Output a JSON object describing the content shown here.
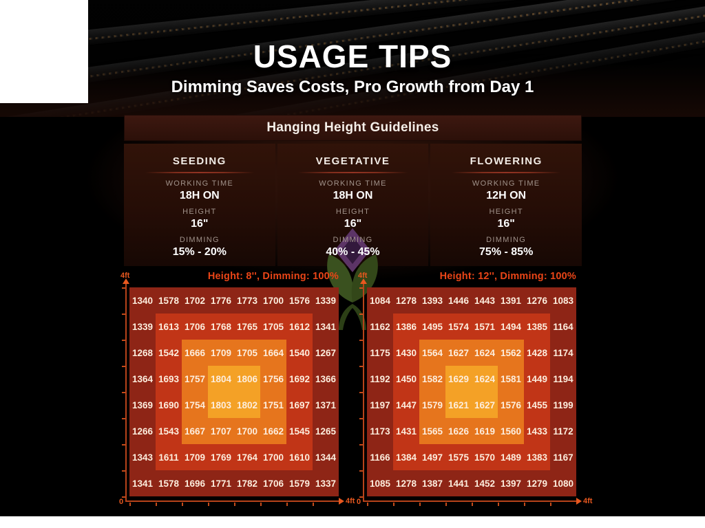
{
  "header": {
    "title": "USAGE TIPS",
    "subtitle": "Dimming Saves Costs, Pro Growth from Day 1"
  },
  "brand": {
    "logo_icon": "plant-flower-logo"
  },
  "guidelines": {
    "title": "Hanging Height Guidelines",
    "columns": [
      {
        "stage": "SEEDING",
        "working_time_label": "WORKING TIME",
        "working_time": "18H ON",
        "height_label": "HEIGHT",
        "height": "16\"",
        "dimming_label": "DIMMING",
        "dimming": "15% - 20%"
      },
      {
        "stage": "VEGETATIVE",
        "working_time_label": "WORKING TIME",
        "working_time": "18H ON",
        "height_label": "HEIGHT",
        "height": "16\"",
        "dimming_label": "DIMMING",
        "dimming": "40% - 45%"
      },
      {
        "stage": "FLOWERING",
        "working_time_label": "WORKING TIME",
        "working_time": "12H ON",
        "height_label": "HEIGHT",
        "height": "16\"",
        "dimming_label": "DIMMING",
        "dimming": "75% - 85%"
      }
    ]
  },
  "palette": {
    "rings": [
      "#8e2516",
      "#c13517",
      "#e6751d",
      "#f4a126"
    ],
    "cell_text": "#fdeede",
    "axis": "#b8431a",
    "axis_accent": "#e8581f",
    "chart_title": "#ea4517"
  },
  "chart_data": [
    {
      "type": "heatmap",
      "title": "Height: 8'', Dimming: 100%",
      "x_axis": {
        "min_label": "0",
        "max_label": "4ft"
      },
      "y_axis": {
        "max_label": "4ft"
      },
      "grid": "8x8",
      "legend": "none",
      "values": [
        [
          1340,
          1578,
          1702,
          1776,
          1773,
          1700,
          1576,
          1339
        ],
        [
          1339,
          1613,
          1706,
          1768,
          1765,
          1705,
          1612,
          1341
        ],
        [
          1268,
          1542,
          1666,
          1709,
          1705,
          1664,
          1540,
          1267
        ],
        [
          1364,
          1693,
          1757,
          1804,
          1806,
          1756,
          1692,
          1366
        ],
        [
          1369,
          1690,
          1754,
          1803,
          1802,
          1751,
          1697,
          1371
        ],
        [
          1266,
          1543,
          1667,
          1707,
          1700,
          1662,
          1545,
          1265
        ],
        [
          1343,
          1611,
          1709,
          1769,
          1764,
          1700,
          1610,
          1344
        ],
        [
          1341,
          1578,
          1696,
          1771,
          1782,
          1706,
          1579,
          1337
        ]
      ]
    },
    {
      "type": "heatmap",
      "title": "Height: 12'', Dimming: 100%",
      "x_axis": {
        "min_label": "0",
        "max_label": "4ft"
      },
      "y_axis": {
        "max_label": "4ft"
      },
      "grid": "8x8",
      "legend": "none",
      "values": [
        [
          1084,
          1278,
          1393,
          1446,
          1443,
          1391,
          1276,
          1083
        ],
        [
          1162,
          1386,
          1495,
          1574,
          1571,
          1494,
          1385,
          1164
        ],
        [
          1175,
          1430,
          1564,
          1627,
          1624,
          1562,
          1428,
          1174
        ],
        [
          1192,
          1450,
          1582,
          1629,
          1624,
          1581,
          1449,
          1194
        ],
        [
          1197,
          1447,
          1579,
          1621,
          1627,
          1576,
          1455,
          1199
        ],
        [
          1173,
          1431,
          1565,
          1626,
          1619,
          1560,
          1433,
          1172
        ],
        [
          1166,
          1384,
          1497,
          1575,
          1570,
          1489,
          1383,
          1167
        ],
        [
          1085,
          1278,
          1387,
          1441,
          1452,
          1397,
          1279,
          1080
        ]
      ]
    }
  ]
}
